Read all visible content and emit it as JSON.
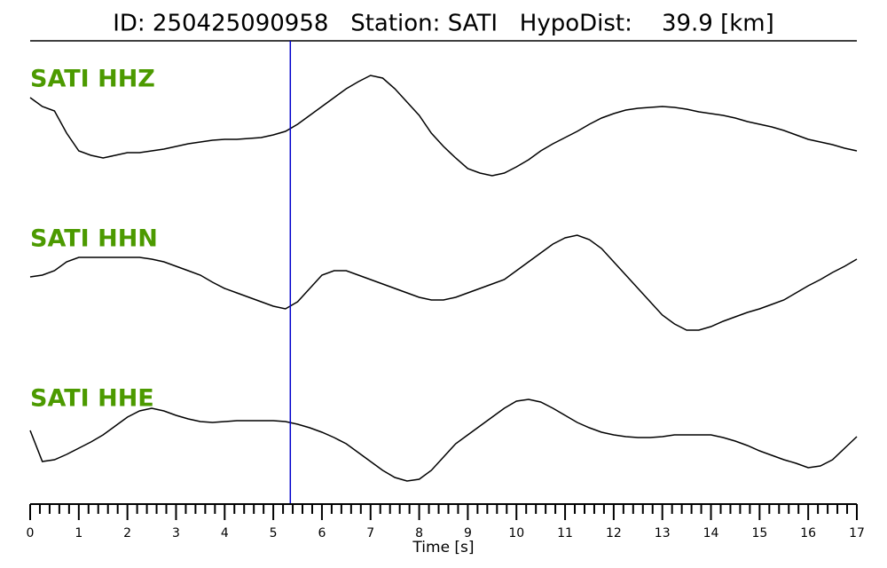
{
  "chart_data": {
    "type": "line",
    "title": "ID: 250425090958   Station: SATI   HypoDist:    39.9 [km]",
    "xlabel": "Time [s]",
    "xlim": [
      0,
      17
    ],
    "xticks": [
      0,
      1,
      2,
      3,
      4,
      5,
      6,
      7,
      8,
      9,
      10,
      11,
      12,
      13,
      14,
      15,
      16,
      17
    ],
    "xminorticks": [
      0.2,
      0.4,
      0.6,
      0.8,
      1.2,
      1.4,
      1.6,
      1.8,
      2.2,
      2.4,
      2.6,
      2.8,
      3.2,
      3.4,
      3.6,
      3.8,
      4.2,
      4.4,
      4.6,
      4.8,
      5.2,
      5.4,
      5.6,
      5.8,
      6.2,
      6.4,
      6.6,
      6.8,
      7.2,
      7.4,
      7.6,
      7.8,
      8.2,
      8.4,
      8.6,
      8.8,
      9.2,
      9.4,
      9.6,
      9.8,
      10.2,
      10.4,
      10.6,
      10.8,
      11.2,
      11.4,
      11.6,
      11.8,
      12.2,
      12.4,
      12.6,
      12.8,
      13.2,
      13.4,
      13.6,
      13.8,
      14.2,
      14.4,
      14.6,
      14.8,
      15.2,
      15.4,
      15.6,
      15.8,
      16.2,
      16.4,
      16.6,
      16.8
    ],
    "marker_x": 5.35,
    "marker_color": "#0000cc",
    "ylim": [
      -80,
      80
    ],
    "label_color": "#4c9a00",
    "x": [
      0,
      0.25,
      0.5,
      0.75,
      1,
      1.25,
      1.5,
      1.75,
      2,
      2.25,
      2.5,
      2.75,
      3,
      3.25,
      3.5,
      3.75,
      4,
      4.25,
      4.5,
      4.75,
      5,
      5.25,
      5.5,
      5.75,
      6,
      6.25,
      6.5,
      6.75,
      7,
      7.25,
      7.5,
      7.75,
      8,
      8.25,
      8.5,
      8.75,
      9,
      9.25,
      9.5,
      9.75,
      10,
      10.25,
      10.5,
      10.75,
      11,
      11.25,
      11.5,
      11.75,
      12,
      12.25,
      12.5,
      12.75,
      13,
      13.25,
      13.5,
      13.75,
      14,
      14.25,
      14.5,
      14.75,
      15,
      15.25,
      15.5,
      15.75,
      16,
      16.25,
      16.5,
      16.75,
      17
    ],
    "series": [
      {
        "name": "SATI HHZ",
        "color": "#000000",
        "values": [
          30,
          20,
          15,
          -10,
          -30,
          -35,
          -38,
          -35,
          -32,
          -32,
          -30,
          -28,
          -25,
          -22,
          -20,
          -18,
          -17,
          -17,
          -16,
          -15,
          -12,
          -8,
          0,
          10,
          20,
          30,
          40,
          48,
          55,
          52,
          40,
          25,
          10,
          -10,
          -25,
          -38,
          -50,
          -55,
          -58,
          -55,
          -48,
          -40,
          -30,
          -22,
          -15,
          -8,
          0,
          7,
          12,
          16,
          18,
          19,
          20,
          19,
          17,
          14,
          12,
          10,
          7,
          3,
          0,
          -3,
          -7,
          -12,
          -17,
          -20,
          -23,
          -27,
          -30
        ]
      },
      {
        "name": "SATI HHN",
        "color": "#000000",
        "values": [
          8,
          10,
          15,
          25,
          30,
          30,
          30,
          30,
          30,
          30,
          28,
          25,
          20,
          15,
          10,
          2,
          -5,
          -10,
          -15,
          -20,
          -25,
          -28,
          -20,
          -5,
          10,
          15,
          15,
          10,
          5,
          0,
          -5,
          -10,
          -15,
          -18,
          -18,
          -15,
          -10,
          -5,
          0,
          5,
          15,
          25,
          35,
          45,
          52,
          55,
          50,
          40,
          25,
          10,
          -5,
          -20,
          -35,
          -45,
          -52,
          -52,
          -48,
          -42,
          -37,
          -32,
          -28,
          -23,
          -18,
          -10,
          -2,
          5,
          13,
          20,
          28
        ]
      },
      {
        "name": "SATI HHE",
        "color": "#000000",
        "values": [
          15,
          -20,
          -18,
          -12,
          -5,
          2,
          10,
          20,
          30,
          37,
          40,
          37,
          32,
          28,
          25,
          24,
          25,
          26,
          26,
          26,
          26,
          25,
          22,
          18,
          13,
          7,
          0,
          -10,
          -20,
          -30,
          -38,
          -42,
          -40,
          -30,
          -15,
          0,
          10,
          20,
          30,
          40,
          48,
          50,
          47,
          40,
          32,
          24,
          18,
          13,
          10,
          8,
          7,
          7,
          8,
          10,
          10,
          10,
          10,
          7,
          3,
          -2,
          -8,
          -13,
          -18,
          -22,
          -27,
          -25,
          -18,
          -5,
          8
        ]
      }
    ]
  }
}
